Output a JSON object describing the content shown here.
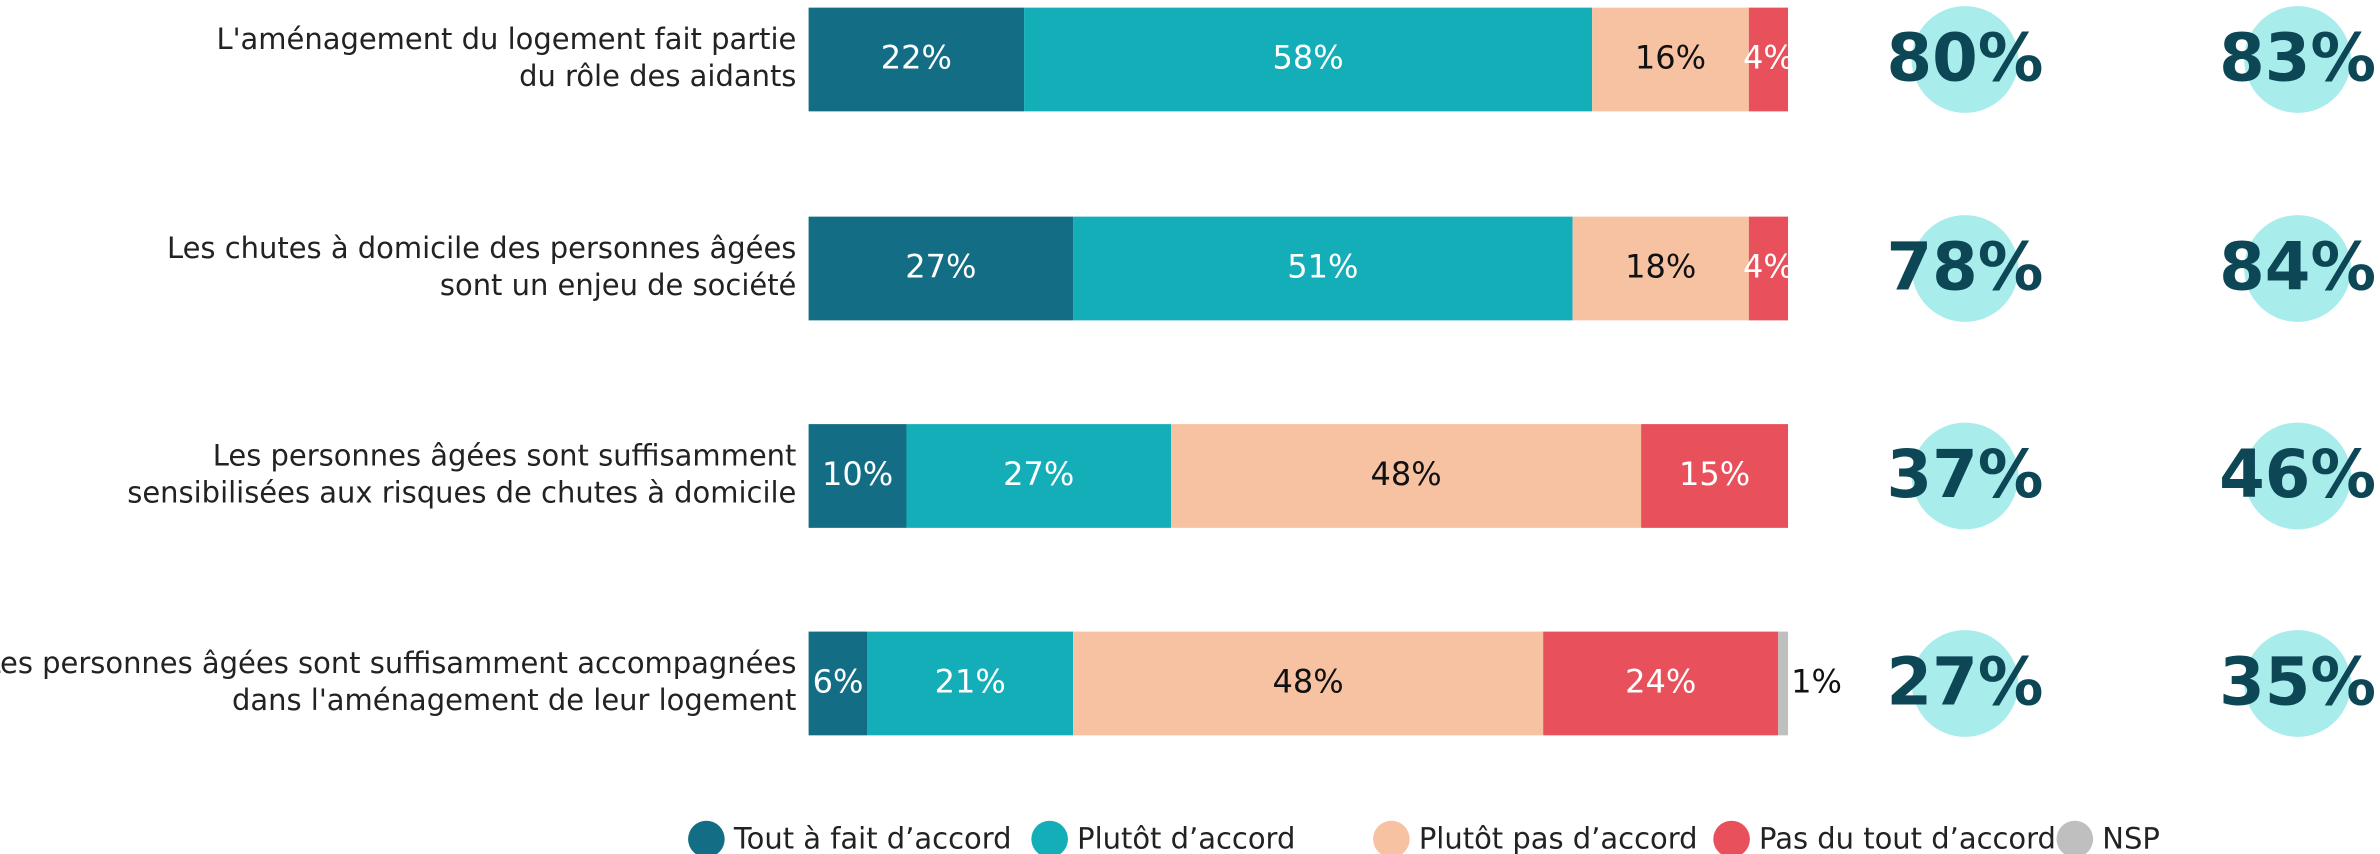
{
  "chart_data": {
    "type": "stacked-bar-horizontal",
    "categories": [
      [
        "L'aménagement du logement fait partie",
        "du rôle des aidants"
      ],
      [
        "Les chutes à domicile des personnes âgées",
        "sont un enjeu de société"
      ],
      [
        "Les personnes âgées sont suffisamment",
        "sensibilisées aux risques de chutes à domicile"
      ],
      [
        "Les personnes âgées sont suffisamment accompagnées",
        "dans l'aménagement de leur logement"
      ]
    ],
    "series": [
      {
        "name": "Tout à fait d’accord",
        "color": "#136e85",
        "label_color": "#ffffff",
        "values": [
          22,
          27,
          10,
          6
        ],
        "value_labels": [
          "22%",
          "27%",
          "10%",
          "6%"
        ]
      },
      {
        "name": "Plutôt d’accord",
        "color": "#14aeb8",
        "label_color": "#ffffff",
        "values": [
          58,
          51,
          27,
          21
        ],
        "value_labels": [
          "58%",
          "51%",
          "27%",
          "21%"
        ]
      },
      {
        "name": "Plutôt pas d’accord",
        "color": "#f7c2a2",
        "label_color": "#111111",
        "values": [
          16,
          18,
          48,
          48
        ],
        "value_labels": [
          "16%",
          "18%",
          "48%",
          "48%"
        ]
      },
      {
        "name": "Pas du tout d’accord",
        "color": "#e8505b",
        "label_color": "#ffffff",
        "values": [
          4,
          4,
          15,
          24
        ],
        "value_labels": [
          "4%",
          "4%",
          "15%",
          "24%"
        ]
      },
      {
        "name": "NSP",
        "color": "#bfbfbf",
        "label_color": "#111111",
        "values": [
          0,
          0,
          0,
          1
        ],
        "value_labels": [
          null,
          null,
          null,
          "1%"
        ]
      }
    ],
    "summary_columns": [
      {
        "color": "#a8ecec",
        "values": [
          80,
          78,
          37,
          27
        ],
        "value_labels": [
          "80%",
          "78%",
          "37%",
          "27%"
        ]
      },
      {
        "color": "#a8ecec",
        "values": [
          83,
          84,
          46,
          35
        ],
        "value_labels": [
          "83%",
          "84%",
          "46%",
          "35%"
        ]
      }
    ],
    "legend": "bottom"
  }
}
